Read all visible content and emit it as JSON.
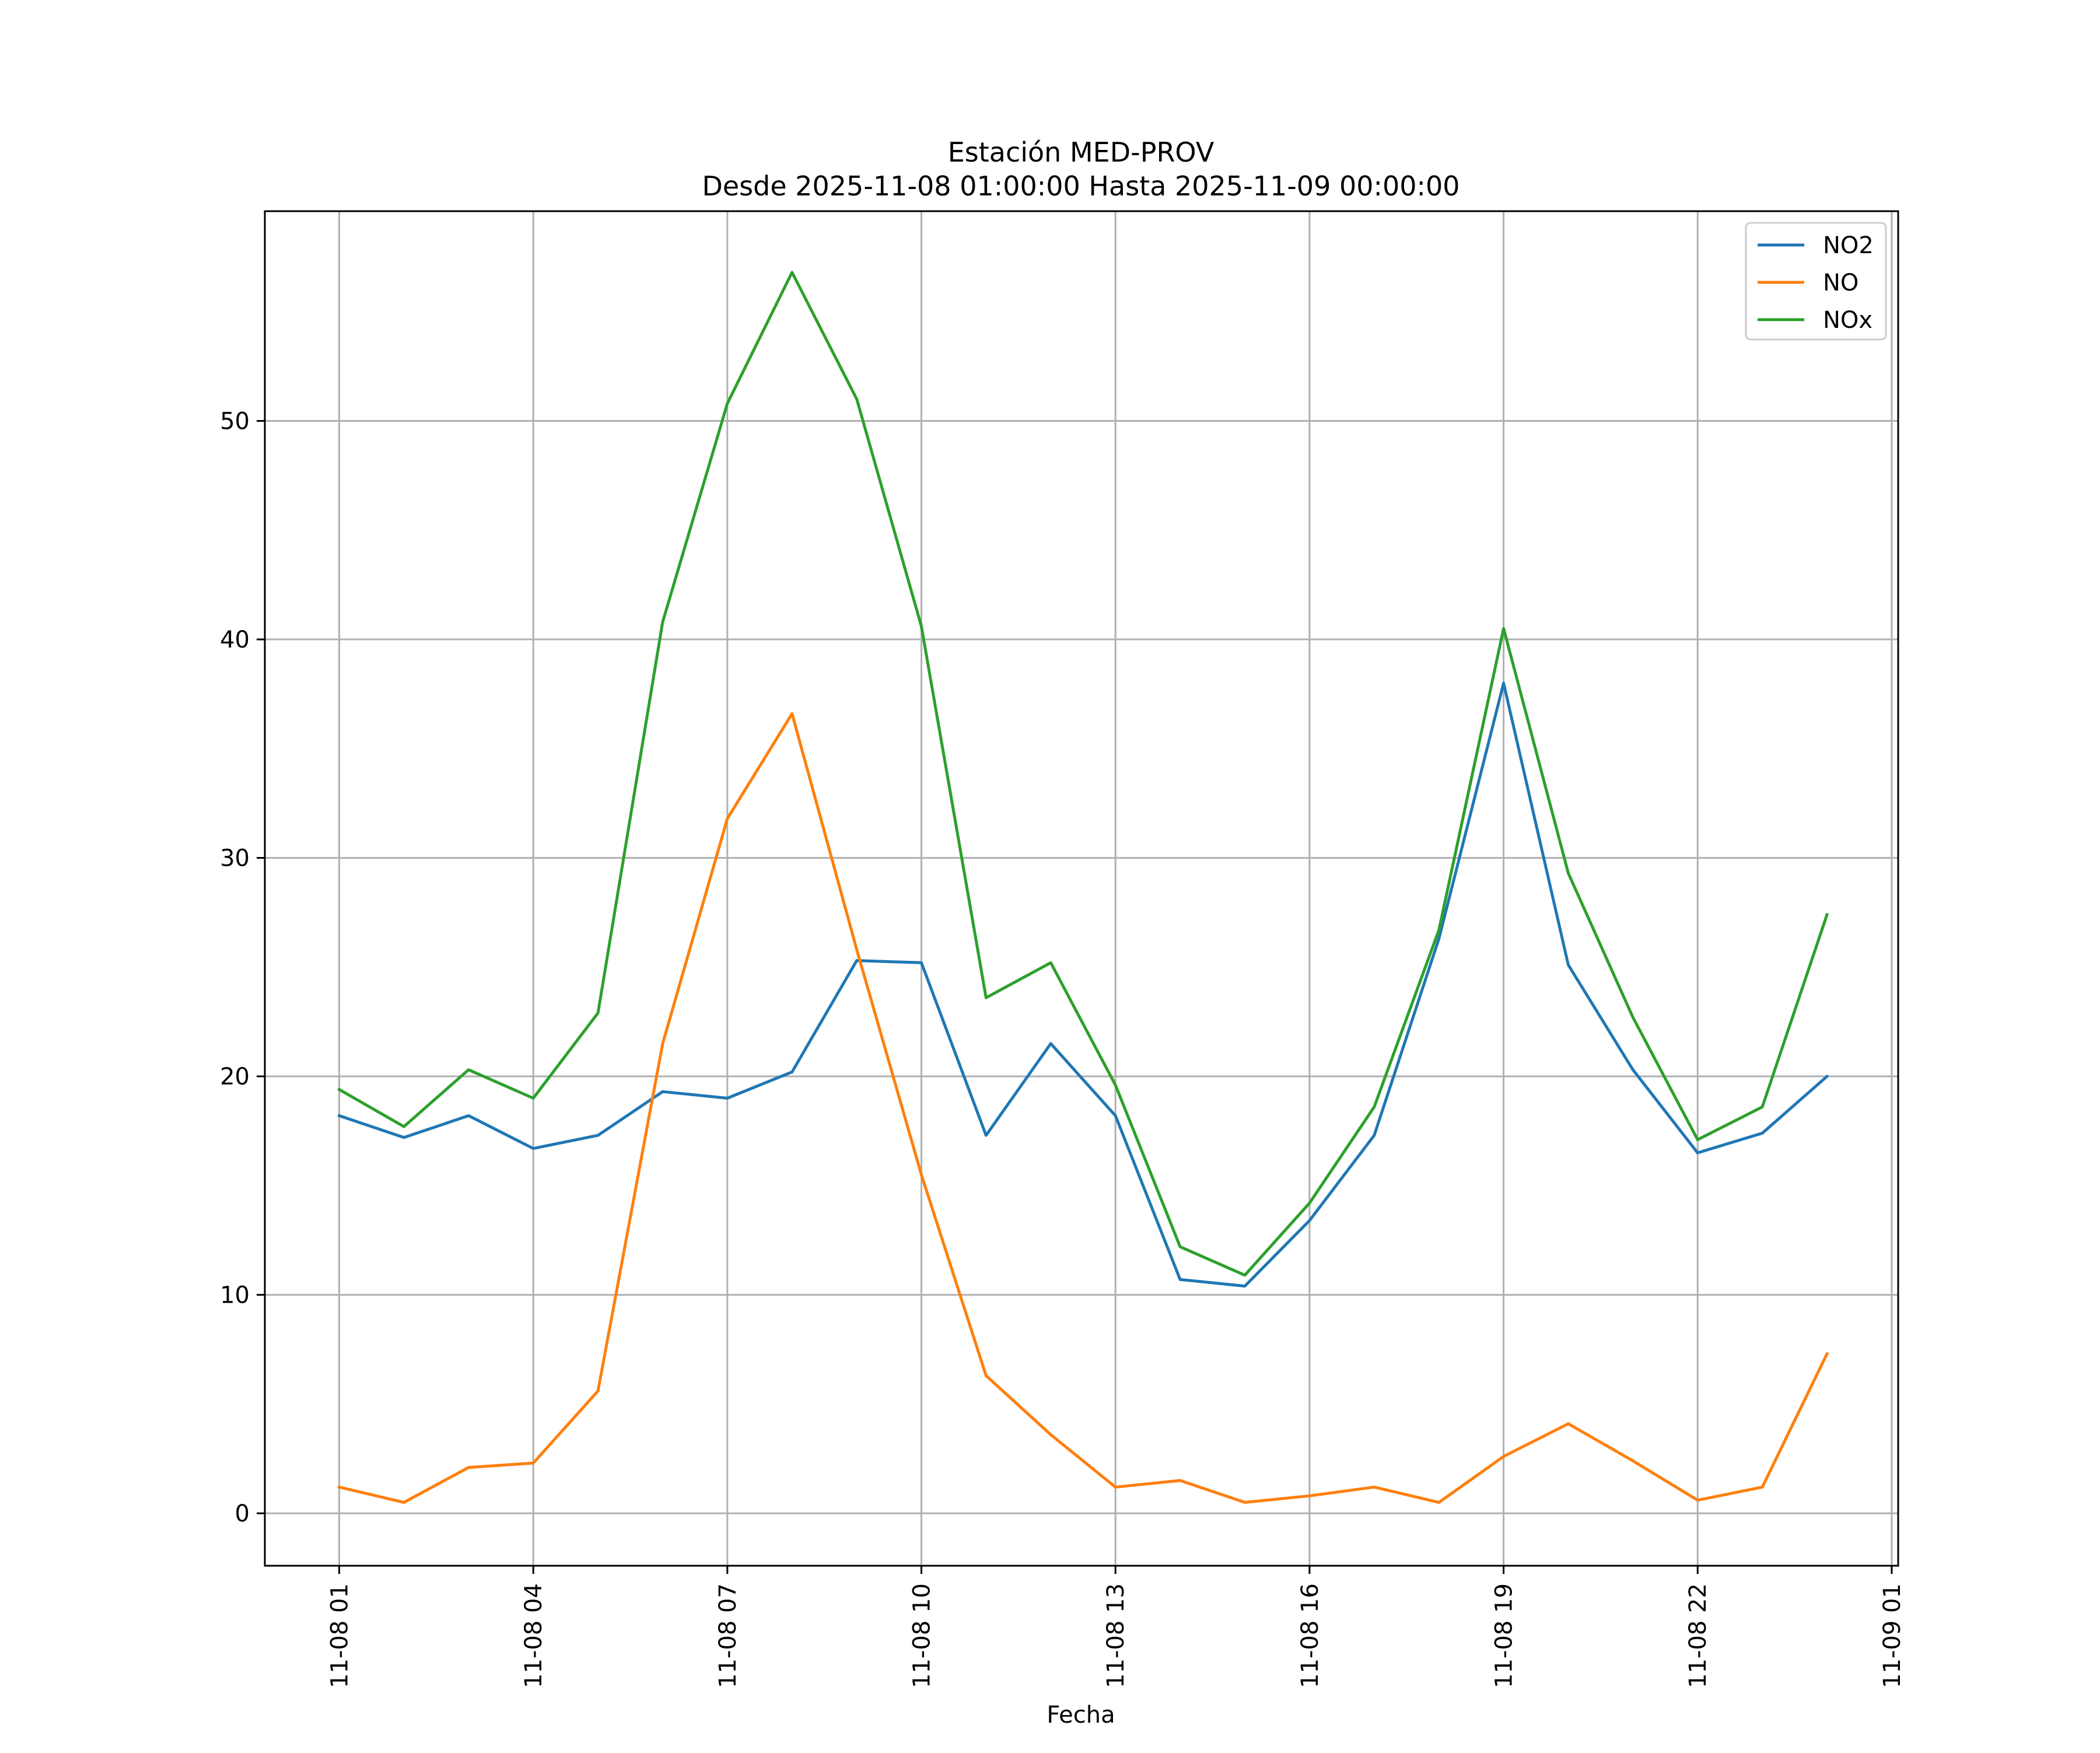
{
  "chart_data": {
    "type": "line",
    "title": "Estación MED-PROV",
    "subtitle": "Desde 2025-11-08 01:00:00 Hasta 2025-11-09 00:00:00",
    "xlabel": "Fecha",
    "ylabel": "",
    "x": [
      "11-08 01",
      "11-08 02",
      "11-08 03",
      "11-08 04",
      "11-08 05",
      "11-08 06",
      "11-08 07",
      "11-08 08",
      "11-08 09",
      "11-08 10",
      "11-08 11",
      "11-08 12",
      "11-08 13",
      "11-08 14",
      "11-08 15",
      "11-08 16",
      "11-08 17",
      "11-08 18",
      "11-08 19",
      "11-08 20",
      "11-08 21",
      "11-08 22",
      "11-08 23",
      "11-09 00"
    ],
    "x_tick_labels": [
      "11-08 01",
      "11-08 04",
      "11-08 07",
      "11-08 10",
      "11-08 13",
      "11-08 16",
      "11-08 19",
      "11-08 22",
      "11-09 01"
    ],
    "x_tick_hours": [
      0,
      3,
      6,
      9,
      12,
      15,
      18,
      21,
      24
    ],
    "x_range_hours": [
      -1.15,
      24.1
    ],
    "y_ticks": [
      0,
      10,
      20,
      30,
      40,
      50
    ],
    "ylim": [
      -2.4,
      59.6
    ],
    "grid": true,
    "legend_position": "top-right",
    "series": [
      {
        "name": "NO2",
        "color": "#1f77b4",
        "values": [
          18.2,
          17.2,
          18.2,
          16.7,
          17.3,
          19.3,
          19.0,
          20.2,
          25.3,
          25.2,
          17.3,
          21.5,
          18.2,
          10.7,
          10.4,
          13.4,
          17.3,
          26.3,
          38.0,
          25.1,
          20.3,
          16.5,
          17.4,
          20.0
        ]
      },
      {
        "name": "NO",
        "color": "#ff7f0e",
        "values": [
          1.2,
          0.5,
          2.1,
          2.3,
          5.6,
          21.5,
          31.8,
          36.6,
          25.8,
          15.5,
          6.3,
          3.6,
          1.2,
          1.5,
          0.5,
          0.8,
          1.2,
          0.5,
          2.6,
          4.1,
          2.4,
          0.6,
          1.2,
          7.3
        ]
      },
      {
        "name": "NOx",
        "color": "#2ca02c",
        "values": [
          19.4,
          17.7,
          20.3,
          19.0,
          22.9,
          40.8,
          50.8,
          56.8,
          51.0,
          40.6,
          23.6,
          25.2,
          19.6,
          12.2,
          10.9,
          14.2,
          18.6,
          26.7,
          40.5,
          29.3,
          22.7,
          17.1,
          18.6,
          27.4
        ]
      }
    ]
  }
}
